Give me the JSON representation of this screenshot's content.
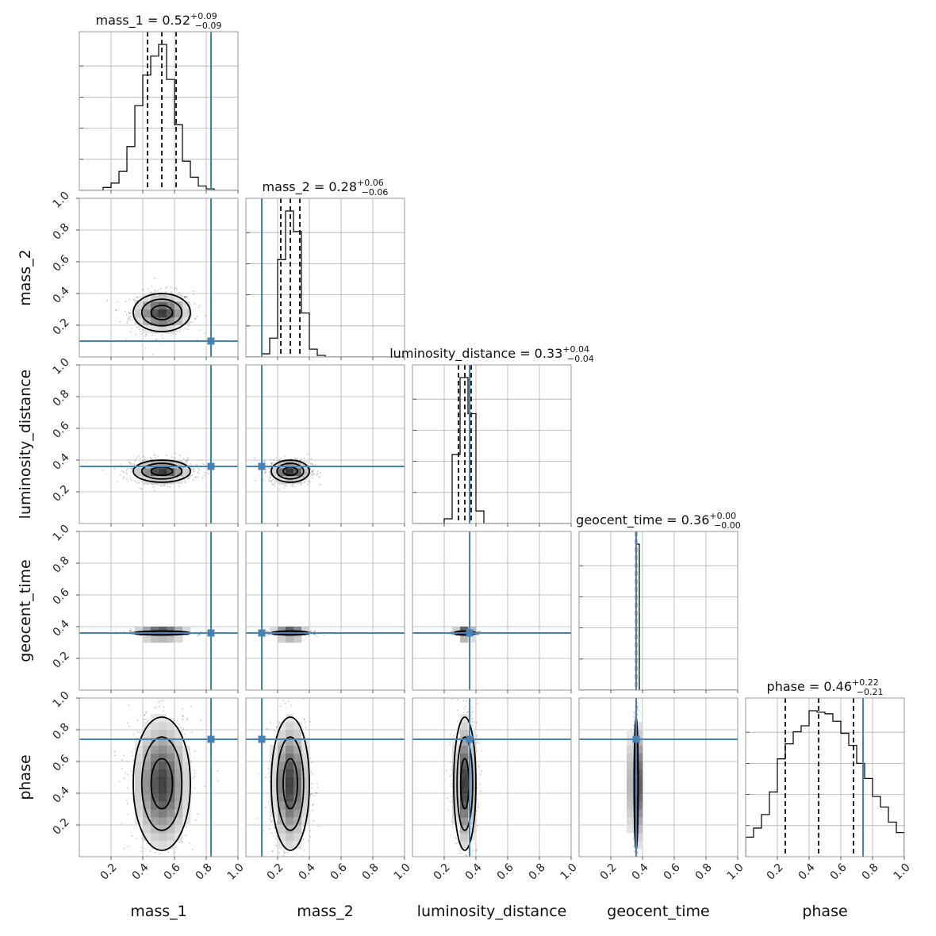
{
  "chart_data": {
    "type": "corner",
    "parameters": [
      "mass_1",
      "mass_2",
      "luminosity_distance",
      "geocent_time",
      "phase"
    ],
    "titles": [
      {
        "param": "mass_1",
        "prefix": "mass_1 = ",
        "median": "0.52",
        "plus": "+0.09",
        "minus": "−0.09"
      },
      {
        "param": "mass_2",
        "prefix": "mass_2 = ",
        "median": "0.28",
        "plus": "+0.06",
        "minus": "−0.06"
      },
      {
        "param": "luminosity_distance",
        "prefix": "luminosity_distance = ",
        "median": "0.33",
        "plus": "+0.04",
        "minus": "−0.04"
      },
      {
        "param": "geocent_time",
        "prefix": "geocent_time = ",
        "median": "0.36",
        "plus": "+0.00",
        "minus": "−0.00"
      },
      {
        "param": "phase",
        "prefix": "phase = ",
        "median": "0.46",
        "plus": "+0.22",
        "minus": "−0.21"
      }
    ],
    "axis_range": [
      0,
      1
    ],
    "x_tick_labels": [
      "0.2",
      "0.4",
      "0.6",
      "0.8",
      "1.0"
    ],
    "y_tick_labels": [
      "0.2",
      "0.4",
      "0.6",
      "0.8",
      "1.0"
    ],
    "grid": true,
    "truth_color": "#4682b4",
    "truths": [
      0.83,
      0.1,
      0.36,
      0.36,
      0.74
    ],
    "quantiles": [
      [
        0.43,
        0.52,
        0.61
      ],
      [
        0.22,
        0.28,
        0.34
      ],
      [
        0.29,
        0.33,
        0.37
      ],
      [
        0.358,
        0.36,
        0.362
      ],
      [
        0.25,
        0.46,
        0.68
      ]
    ],
    "histograms": [
      {
        "bin_edges": [
          0.1,
          0.15,
          0.2,
          0.25,
          0.3,
          0.35,
          0.4,
          0.45,
          0.5,
          0.55,
          0.6,
          0.65,
          0.7,
          0.75,
          0.8,
          0.85,
          0.9
        ],
        "counts": [
          0.0,
          0.02,
          0.05,
          0.13,
          0.3,
          0.58,
          0.79,
          0.92,
          1.0,
          0.76,
          0.45,
          0.2,
          0.09,
          0.03,
          0.01,
          0.0
        ]
      },
      {
        "bin_edges": [
          0.05,
          0.1,
          0.15,
          0.2,
          0.25,
          0.3,
          0.35,
          0.4,
          0.45,
          0.5,
          0.55
        ],
        "counts": [
          0.0,
          0.02,
          0.12,
          0.62,
          0.93,
          0.8,
          0.28,
          0.05,
          0.01,
          0.0
        ]
      },
      {
        "bin_edges": [
          0.15,
          0.2,
          0.25,
          0.3,
          0.35,
          0.4,
          0.45,
          0.5
        ],
        "counts": [
          0.0,
          0.03,
          0.44,
          0.93,
          0.7,
          0.08,
          0.0
        ]
      },
      {
        "bin_edges": [
          0.34,
          0.36,
          0.38,
          0.4
        ],
        "counts": [
          0.0,
          1.0,
          0.0
        ]
      },
      {
        "bin_edges": [
          0,
          0.05,
          0.1,
          0.15,
          0.2,
          0.25,
          0.3,
          0.35,
          0.4,
          0.45,
          0.5,
          0.55,
          0.6,
          0.65,
          0.7,
          0.75,
          0.8,
          0.85,
          0.9,
          0.95,
          1.0
        ],
        "counts": [
          0.13,
          0.19,
          0.28,
          0.43,
          0.65,
          0.75,
          0.83,
          0.87,
          0.97,
          0.96,
          0.95,
          0.9,
          0.82,
          0.74,
          0.62,
          0.52,
          0.4,
          0.33,
          0.23,
          0.16
        ]
      }
    ],
    "pair_densities": [
      {
        "row": 1,
        "col": 0,
        "mean": [
          0.52,
          0.28
        ],
        "sd": [
          0.09,
          0.06
        ],
        "rot": 0
      },
      {
        "row": 2,
        "col": 0,
        "mean": [
          0.52,
          0.33
        ],
        "sd": [
          0.09,
          0.035
        ],
        "rot": 0
      },
      {
        "row": 2,
        "col": 1,
        "mean": [
          0.28,
          0.33
        ],
        "sd": [
          0.06,
          0.035
        ],
        "rot": 0
      },
      {
        "row": 3,
        "col": 0,
        "mean": [
          0.52,
          0.36
        ],
        "sd": [
          0.09,
          0.006
        ],
        "rot": 0
      },
      {
        "row": 3,
        "col": 1,
        "mean": [
          0.28,
          0.36
        ],
        "sd": [
          0.06,
          0.006
        ],
        "rot": 0
      },
      {
        "row": 3,
        "col": 2,
        "mean": [
          0.33,
          0.36
        ],
        "sd": [
          0.035,
          0.006
        ],
        "rot": 0
      },
      {
        "row": 4,
        "col": 0,
        "mean": [
          0.52,
          0.46
        ],
        "sd": [
          0.09,
          0.21
        ],
        "rot": 0
      },
      {
        "row": 4,
        "col": 1,
        "mean": [
          0.28,
          0.46
        ],
        "sd": [
          0.06,
          0.21
        ],
        "rot": 0
      },
      {
        "row": 4,
        "col": 2,
        "mean": [
          0.33,
          0.46
        ],
        "sd": [
          0.035,
          0.21
        ],
        "rot": 0
      },
      {
        "row": 4,
        "col": 3,
        "mean": [
          0.36,
          0.46
        ],
        "sd": [
          0.006,
          0.21
        ],
        "rot": 0
      }
    ]
  }
}
